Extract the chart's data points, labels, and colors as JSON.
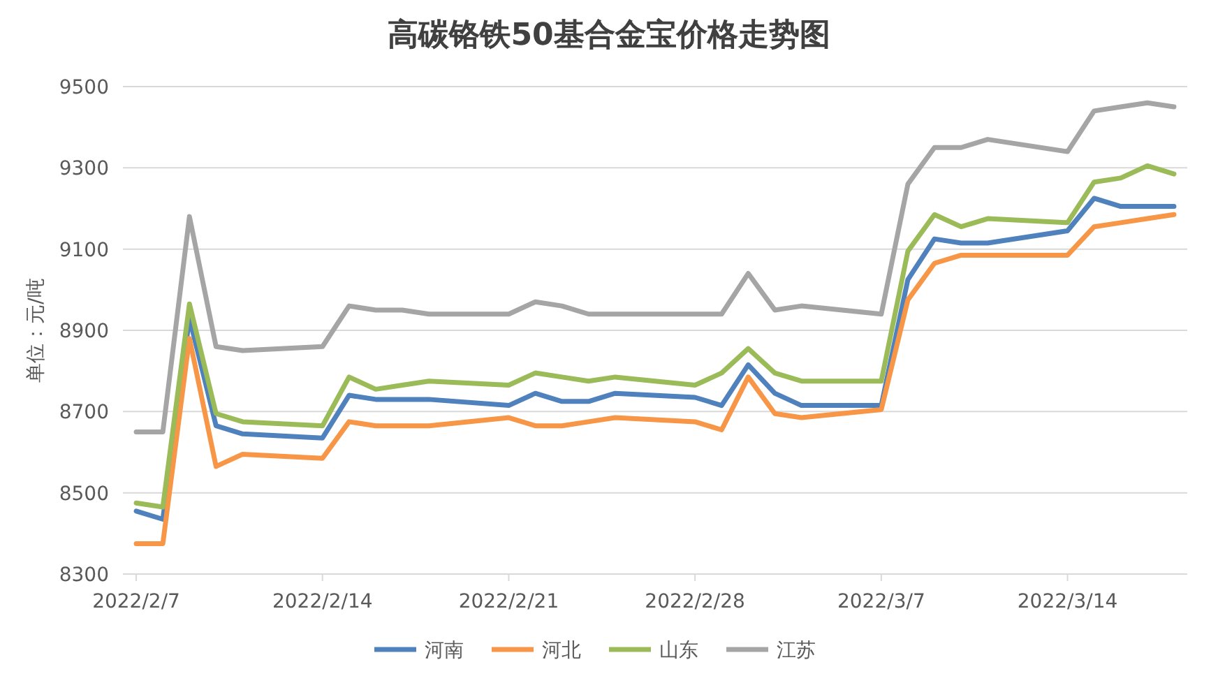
{
  "chart_data": {
    "type": "line",
    "title": "高碳铬铁50基合金宝价格走势图",
    "ylabel": "单位：元/吨",
    "x": [
      "2022-02-07",
      "2022-02-08",
      "2022-02-09",
      "2022-02-10",
      "2022-02-11",
      "2022-02-14",
      "2022-02-15",
      "2022-02-16",
      "2022-02-17",
      "2022-02-18",
      "2022-02-21",
      "2022-02-22",
      "2022-02-23",
      "2022-02-24",
      "2022-02-25",
      "2022-02-28",
      "2022-03-01",
      "2022-03-02",
      "2022-03-03",
      "2022-03-04",
      "2022-03-07",
      "2022-03-08",
      "2022-03-09",
      "2022-03-10",
      "2022-03-11",
      "2022-03-14",
      "2022-03-15",
      "2022-03-16",
      "2022-03-17",
      "2022-03-18"
    ],
    "series": [
      {
        "name": "河南",
        "color": "#4f81bd",
        "values": [
          8455,
          8435,
          8930,
          8665,
          8645,
          8635,
          8740,
          8730,
          8730,
          8730,
          8715,
          8745,
          8725,
          8725,
          8745,
          8735,
          8715,
          8815,
          8745,
          8715,
          8715,
          9025,
          9125,
          9115,
          9115,
          9145,
          9225,
          9205,
          9205,
          9205
        ]
      },
      {
        "name": "河北",
        "color": "#f79646",
        "values": [
          8375,
          8375,
          8880,
          8565,
          8595,
          8585,
          8675,
          8665,
          8665,
          8665,
          8685,
          8665,
          8665,
          8675,
          8685,
          8675,
          8655,
          8785,
          8695,
          8685,
          8705,
          8975,
          9065,
          9085,
          9085,
          9085,
          9155,
          9165,
          9175,
          9185
        ]
      },
      {
        "name": "山东",
        "color": "#9bbb59",
        "values": [
          8475,
          8465,
          8965,
          8695,
          8675,
          8665,
          8785,
          8755,
          8765,
          8775,
          8765,
          8795,
          8785,
          8775,
          8785,
          8765,
          8795,
          8855,
          8795,
          8775,
          8775,
          9095,
          9185,
          9155,
          9175,
          9165,
          9265,
          9275,
          9305,
          9285
        ]
      },
      {
        "name": "江苏",
        "color": "#a5a5a5",
        "values": [
          8650,
          8650,
          9180,
          8860,
          8850,
          8860,
          8960,
          8950,
          8950,
          8940,
          8940,
          8970,
          8960,
          8940,
          8940,
          8940,
          8940,
          9040,
          8950,
          8960,
          8940,
          9260,
          9350,
          9350,
          9370,
          9340,
          9440,
          9450,
          9460,
          9450
        ]
      }
    ],
    "xlim": [
      "2022-02-06T12:00",
      "2022-03-18T12:00"
    ],
    "xticks": [
      {
        "value": "2022-02-07",
        "label": "2022/2/7"
      },
      {
        "value": "2022-02-14",
        "label": "2022/2/14"
      },
      {
        "value": "2022-02-21",
        "label": "2022/2/21"
      },
      {
        "value": "2022-02-28",
        "label": "2022/2/28"
      },
      {
        "value": "2022-03-07",
        "label": "2022/3/7"
      },
      {
        "value": "2022-03-14",
        "label": "2022/3/14"
      }
    ],
    "ylim": [
      8300,
      9500
    ],
    "yticks": [
      8300,
      8500,
      8700,
      8900,
      9100,
      9300,
      9500
    ],
    "grid": "y",
    "legend": "bottom",
    "marker": "none",
    "line_style": "solid"
  }
}
